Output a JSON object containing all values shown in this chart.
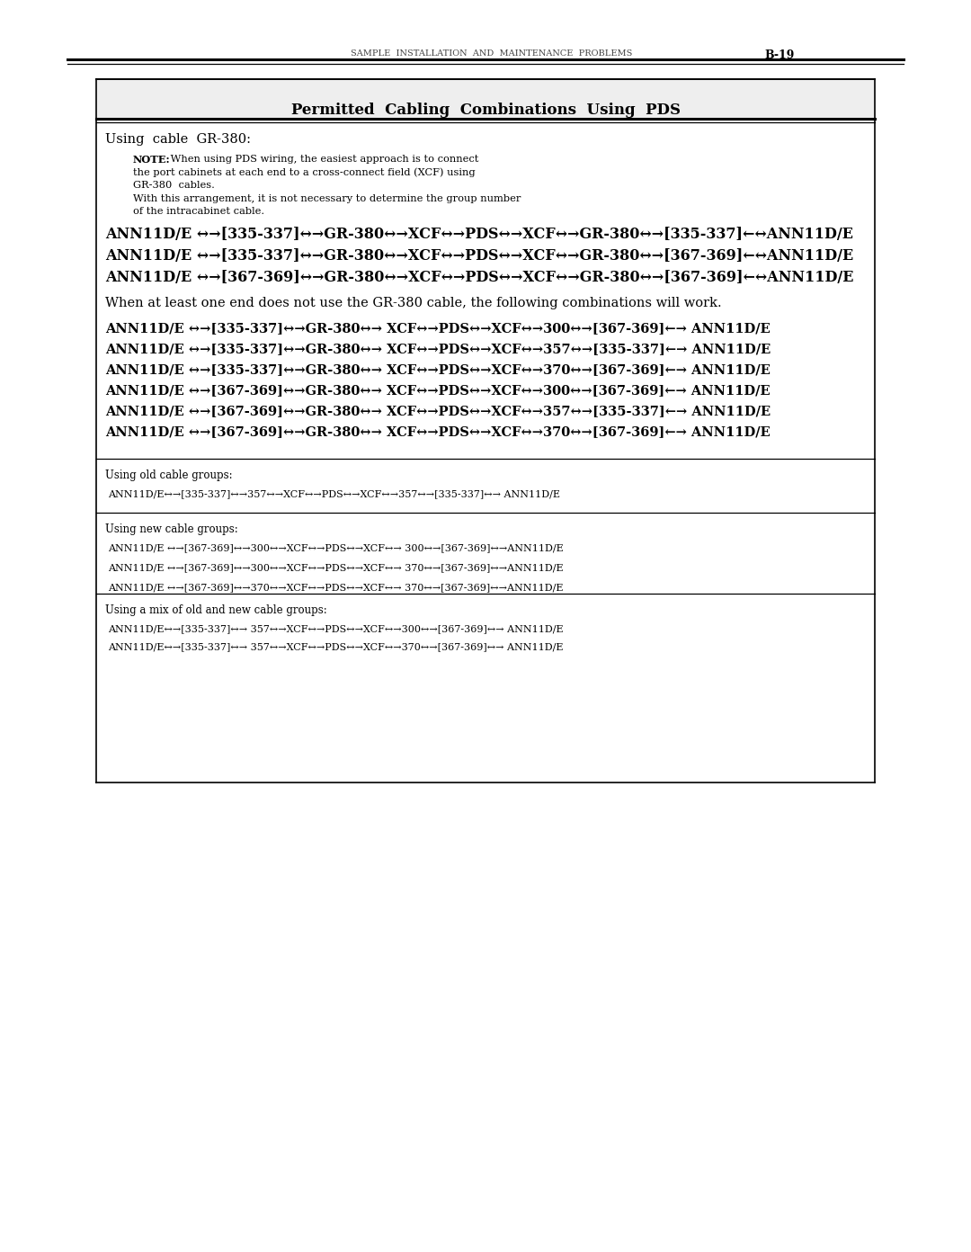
{
  "page_header_left": "SAMPLE  INSTALLATION  AND  MAINTENANCE  PROBLEMS",
  "page_header_right": "B-19",
  "box_title": "Permitted  Cabling  Combinations  Using  PDS",
  "section1_header": "Using  cable  GR-380:",
  "note_lines": [
    "NOTE: When using PDS wiring, the easiest approach is to connect",
    "the port cabinets at each end to a cross-connect field (XCF) using",
    "GR-380  cables.",
    "With this arrangement, it is not necessary to determine the group number",
    "of the intracabinet cable."
  ],
  "gr380_lines": [
    "ANN11D/E ↔→[335-337]↔→GR-380↔→XCF↔→PDS↔→XCF↔→GR-380↔→[335-337]←↔ANN11D/E",
    "ANN11D/E ↔→[335-337]↔→GR-380↔→XCF↔→PDS↔→XCF↔→GR-380↔→[367-369]←↔ANN11D/E",
    "ANN11D/E ↔→[367-369]↔→GR-380↔→XCF↔→PDS↔→XCF↔→GR-380↔→[367-369]←↔ANN11D/E"
  ],
  "when_text": "When at least one end does not use the GR-380 cable, the following combinations will work.",
  "combo_lines": [
    "ANN11D/E ↔→[335-337]↔→GR-380↔→ XCF↔→PDS↔→XCF↔→300↔→[367-369]←→ ANN11D/E",
    "ANN11D/E ↔→[335-337]↔→GR-380↔→ XCF↔→PDS↔→XCF↔→357↔→[335-337]←→ ANN11D/E",
    "ANN11D/E ↔→[335-337]↔→GR-380↔→ XCF↔→PDS↔→XCF↔→370↔→[367-369]←→ ANN11D/E",
    "ANN11D/E ↔→[367-369]↔→GR-380↔→ XCF↔→PDS↔→XCF↔→300↔→[367-369]←→ ANN11D/E",
    "ANN11D/E ↔→[367-369]↔→GR-380↔→ XCF↔→PDS↔→XCF↔→357↔→[335-337]←→ ANN11D/E",
    "ANN11D/E ↔→[367-369]↔→GR-380↔→ XCF↔→PDS↔→XCF↔→370↔→[367-369]←→ ANN11D/E"
  ],
  "old_cable_header": "Using old cable groups:",
  "old_cable_lines": [
    "ANN11D/E↔→[335-337]↔→357↔→XCF↔→PDS↔→XCF↔→357↔→[335-337]↔→ ANN11D/E"
  ],
  "new_cable_header": "Using new cable groups:",
  "new_cable_lines": [
    "ANN11D/E ↔→[367-369]↔→300↔→XCF↔→PDS↔→XCF↔→ 300↔→[367-369]↔→ANN11D/E",
    "ANN11D/E ↔→[367-369]↔→300↔→XCF↔→PDS↔→XCF↔→ 370↔→[367-369]↔→ANN11D/E",
    "ANN11D/E ↔→[367-369]↔→370↔→XCF↔→PDS↔→XCF↔→ 370↔→[367-369]↔→ANN11D/E"
  ],
  "mix_cable_header": "Using a mix of old and new cable groups:",
  "mix_cable_lines": [
    "ANN11D/E↔→[335-337]↔→ 357↔→XCF↔→PDS↔→XCF↔→300↔→[367-369]↔→ ANN11D/E",
    "ANN11D/E↔→[335-337]↔→ 357↔→XCF↔→PDS↔→XCF↔→370↔→[367-369]↔→ ANN11D/E"
  ],
  "bg_color": "#ffffff",
  "text_color": "#000000"
}
